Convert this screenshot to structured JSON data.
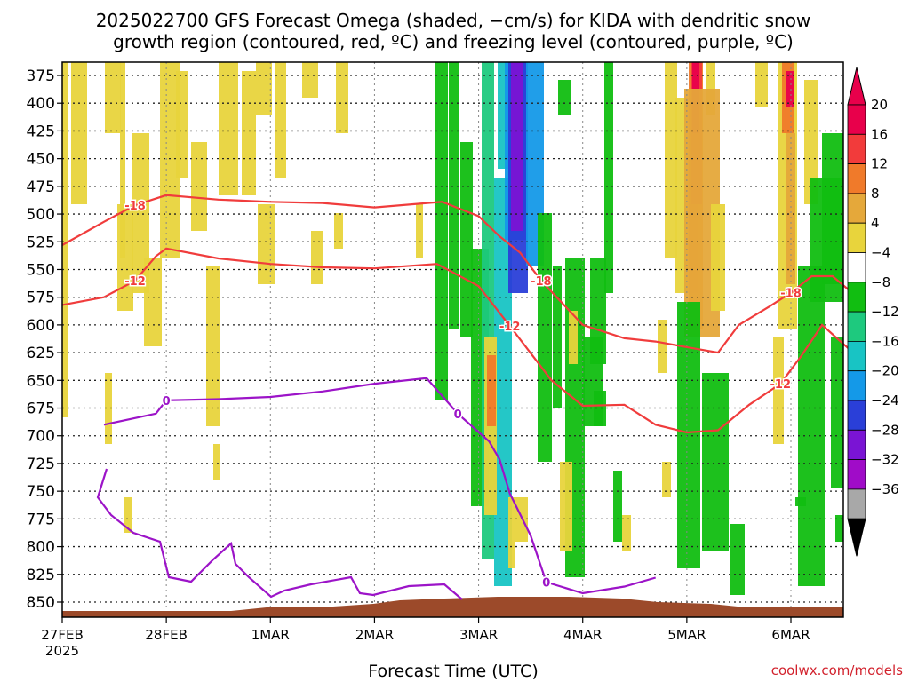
{
  "chart_data": {
    "type": "heatmap",
    "title_line1": "2025022700 GFS Forecast Omega (shaded, −cm/s) for KIDA with dendritic snow",
    "title_line2": "growth region (contoured, red, ºC) and freezing level (contoured, purple, ºC)",
    "xlabel": "Forecast Time (UTC)",
    "ylabel": "",
    "y_axis": {
      "ticks": [
        "375",
        "400",
        "425",
        "450",
        "475",
        "500",
        "525",
        "550",
        "575",
        "600",
        "625",
        "650",
        "675",
        "700",
        "725",
        "750",
        "775",
        "800",
        "825",
        "850"
      ],
      "range": [
        370,
        860
      ],
      "grid": true,
      "grid_style": "dotted"
    },
    "x_axis": {
      "ticks": [
        "27FEB",
        "28FEB",
        "1MAR",
        "2MAR",
        "3MAR",
        "4MAR",
        "5MAR",
        "6MAR"
      ],
      "first_tick_sublabel": "2025",
      "range_days": [
        0,
        7.4
      ],
      "grid": true,
      "grid_style": "dotted"
    },
    "colorbar": {
      "labels": [
        "20",
        "16",
        "12",
        "8",
        "4",
        "−4",
        "−8",
        "−12",
        "−16",
        "−20",
        "−24",
        "−28",
        "−32",
        "−36"
      ],
      "colors": [
        "#e8004b",
        "#f23b3b",
        "#f07a2a",
        "#e5a83a",
        "#e8d43c",
        "#ffffff",
        "#11be11",
        "#1ec97e",
        "#18c4c4",
        "#1499e8",
        "#2a3fd8",
        "#7a14d4",
        "#a00cc8",
        "#a8a8a8"
      ]
    },
    "contours": [
      {
        "label": "-18",
        "color": "#f03c3c",
        "level_pressure_points": [
          [
            0,
            528
          ],
          [
            0.4,
            507
          ],
          [
            0.7,
            492
          ],
          [
            1.0,
            483
          ],
          [
            1.5,
            487
          ],
          [
            2.0,
            489
          ],
          [
            2.5,
            490
          ],
          [
            3.0,
            494
          ],
          [
            3.65,
            489
          ],
          [
            4.0,
            502
          ],
          [
            4.2,
            520
          ],
          [
            4.4,
            535
          ],
          [
            4.6,
            560
          ],
          [
            5.0,
            600
          ],
          [
            5.4,
            612
          ],
          [
            5.7,
            615
          ],
          [
            6.0,
            620
          ],
          [
            6.3,
            625
          ],
          [
            6.5,
            600
          ],
          [
            6.8,
            583
          ],
          [
            7.0,
            571
          ],
          [
            7.2,
            556
          ],
          [
            7.4,
            556
          ],
          [
            7.55,
            568
          ]
        ]
      },
      {
        "label": "-12",
        "color": "#f03c3c",
        "level_pressure_points": [
          [
            0,
            582
          ],
          [
            0.4,
            575
          ],
          [
            0.7,
            560
          ],
          [
            0.9,
            538
          ],
          [
            1.0,
            531
          ],
          [
            1.5,
            540
          ],
          [
            2.0,
            545
          ],
          [
            2.5,
            548
          ],
          [
            3.0,
            549
          ],
          [
            3.6,
            545
          ],
          [
            4.0,
            565
          ],
          [
            4.3,
            601
          ],
          [
            4.7,
            650
          ],
          [
            5.0,
            673
          ],
          [
            5.4,
            672
          ],
          [
            5.7,
            690
          ],
          [
            6.0,
            697
          ],
          [
            6.3,
            695
          ],
          [
            6.6,
            672
          ],
          [
            6.9,
            653
          ],
          [
            7.1,
            628
          ],
          [
            7.3,
            600
          ],
          [
            7.55,
            621
          ]
        ]
      },
      {
        "label": "0",
        "color": "#9c14c8",
        "level_pressure_points": [
          [
            0.4,
            690
          ],
          [
            0.9,
            680
          ],
          [
            1.0,
            668
          ],
          [
            1.5,
            667
          ],
          [
            2.0,
            665
          ],
          [
            2.5,
            660
          ],
          [
            3.0,
            653
          ],
          [
            3.5,
            648
          ],
          [
            3.8,
            680
          ],
          [
            4.1,
            705
          ],
          [
            4.2,
            721
          ],
          [
            4.3,
            752
          ],
          [
            4.5,
            790
          ],
          [
            4.65,
            832
          ],
          [
            5.0,
            842
          ],
          [
            5.4,
            836
          ],
          [
            5.7,
            828
          ]
        ]
      }
    ],
    "terrain_color": "#9c4a2a",
    "grid": true
  },
  "footer": {
    "credit": "coolwx.com/models"
  },
  "colors": {
    "dendritic_contour": "#f03c3c",
    "freezing_contour": "#9c14c8",
    "terrain": "#9c4a2a"
  }
}
